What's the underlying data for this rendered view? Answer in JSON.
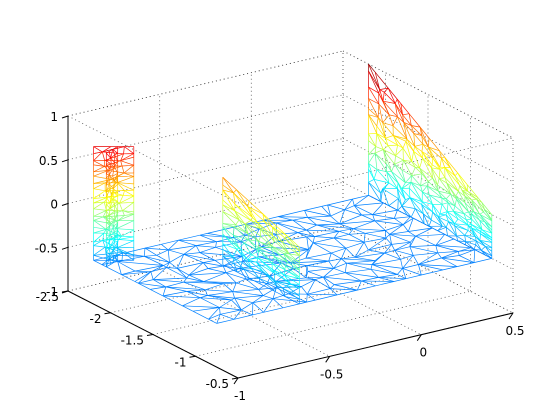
{
  "chart_data": {
    "type": "surface",
    "renderer": "triangulated 3-D mesh, jet colormap by z",
    "colormap": "jet",
    "grid": true,
    "xlim": [
      -1,
      0.5
    ],
    "ylim": [
      -2.5,
      -0.5
    ],
    "zlim": [
      -1,
      1
    ],
    "x_ticks": [
      "-1",
      "-0.5",
      "0",
      "0.5"
    ],
    "y_ticks": [
      "-2.5",
      "-2",
      "-1.5",
      "-1",
      "-0.5"
    ],
    "z_ticks": [
      "-1",
      "-0.5",
      "0",
      "0.5",
      "1"
    ],
    "parts": [
      {
        "name": "floor",
        "x_range": [
          -1,
          0.5
        ],
        "y_range": [
          -2.2,
          -0.75
        ],
        "z": -0.5
      },
      {
        "name": "left-column",
        "x_range": [
          -1,
          -0.85
        ],
        "y_range": [
          -2.2,
          -2.05
        ],
        "z_range": [
          -0.5,
          0.8
        ]
      },
      {
        "name": "middle-fin",
        "x": -0.55,
        "y_range": [
          -1.65,
          -0.75
        ],
        "z_range": [
          -0.5,
          0.5
        ]
      },
      {
        "name": "right-wall",
        "x": 0.5,
        "y_range": [
          -2.2,
          -0.75
        ],
        "z_top_range": [
          1,
          0
        ]
      }
    ]
  }
}
